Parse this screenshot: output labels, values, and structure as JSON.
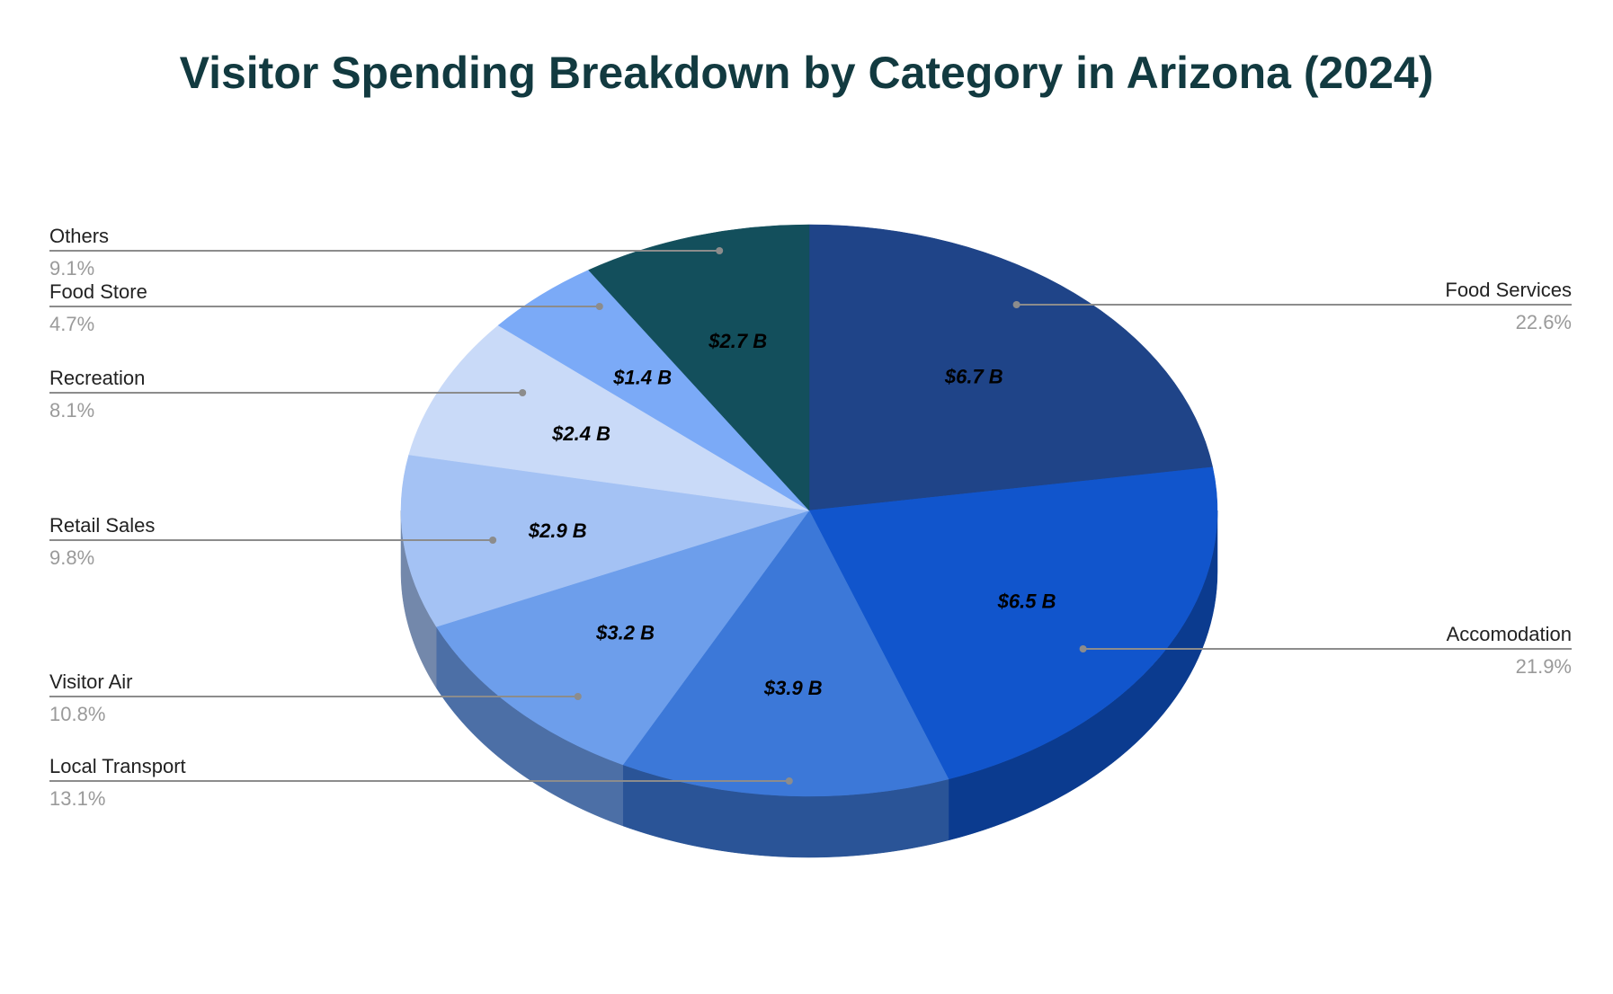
{
  "chart_data": {
    "type": "pie",
    "title": "Visitor Spending Breakdown by Category in Arizona (2024)",
    "unit_note": "",
    "slices": [
      {
        "name": "Food Services",
        "value": 6.7,
        "value_label": "$6.7 B",
        "percent_label": "22.6%",
        "percent": 22.6,
        "color": "#1f4488",
        "side_color": "#173468"
      },
      {
        "name": "Accomodation",
        "value": 6.5,
        "value_label": "$6.5 B",
        "percent_label": "21.9%",
        "percent": 21.9,
        "color": "#1155cc",
        "side_color": "#0b3b8f"
      },
      {
        "name": "Local Transport",
        "value": 3.9,
        "value_label": "$3.9 B",
        "percent_label": "13.1%",
        "percent": 13.1,
        "color": "#3c78d8",
        "side_color": "#2a5497"
      },
      {
        "name": "Visitor Air",
        "value": 3.2,
        "value_label": "$3.2 B",
        "percent_label": "10.8%",
        "percent": 10.8,
        "color": "#6d9eeb",
        "side_color": "#4c6fa6"
      },
      {
        "name": "Retail Sales",
        "value": 2.9,
        "value_label": "$2.9 B",
        "percent_label": "9.8%",
        "percent": 9.8,
        "color": "#a4c2f4",
        "side_color": "#7388ab"
      },
      {
        "name": "Recreation",
        "value": 2.4,
        "value_label": "$2.4 B",
        "percent_label": "8.1%",
        "percent": 8.1,
        "color": "#c9daf8",
        "side_color": "#8d99ae"
      },
      {
        "name": "Food Store",
        "value": 1.4,
        "value_label": "$1.4 B",
        "percent_label": "4.7%",
        "percent": 4.7,
        "color": "#7baaf7",
        "side_color": "#5677ad"
      },
      {
        "name": "Others",
        "value": 2.7,
        "value_label": "$2.7 B",
        "percent_label": "9.1%",
        "percent": 9.1,
        "color": "#134f5c",
        "side_color": "#0d3740"
      }
    ],
    "legend_placement": "leader-lines",
    "style": "3d-pie",
    "colors": {
      "title": "#123a40",
      "leader_line": "#8c8c8c",
      "percent_text": "#9a9a9a"
    }
  }
}
